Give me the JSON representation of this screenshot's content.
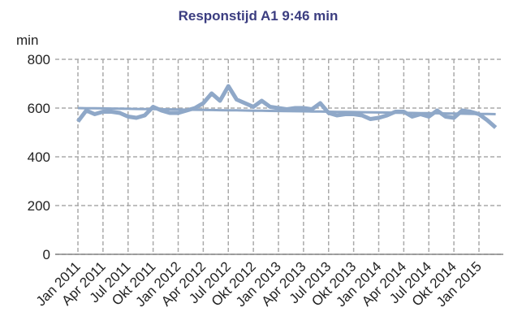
{
  "chart_data": {
    "type": "line",
    "title": "Responstijd A1 9:46 min",
    "y_label": "min",
    "categories": [
      "Jan 2011",
      null,
      null,
      "Apr 2011",
      null,
      null,
      "Jul 2011",
      null,
      null,
      "Okt 2011",
      null,
      null,
      "Jan 2012",
      null,
      null,
      "Apr 2012",
      null,
      null,
      "Jul 2012",
      null,
      null,
      "Okt 2012",
      null,
      null,
      "Jan 2013",
      null,
      null,
      "Apr 2013",
      null,
      null,
      "Jul 2013",
      null,
      null,
      "Okt 2013",
      null,
      null,
      "Jan 2014",
      null,
      null,
      "Apr 2014",
      null,
      null,
      "Jul 2014",
      null,
      null,
      "Okt 2014",
      null,
      null,
      "Jan 2015",
      null,
      null
    ],
    "series": [
      {
        "color": "#8fa8c8",
        "values": [
          545,
          590,
          575,
          585,
          585,
          580,
          565,
          560,
          570,
          605,
          590,
          580,
          580,
          590,
          600,
          620,
          660,
          630,
          690,
          635,
          620,
          605,
          630,
          605,
          600,
          595,
          600,
          600,
          595,
          620,
          580,
          570,
          575,
          575,
          570,
          555,
          560,
          570,
          585,
          585,
          565,
          575,
          565,
          590,
          565,
          560,
          590,
          585,
          575,
          550,
          520
        ]
      },
      {
        "color": "#8fa8c8",
        "values": [
          600,
          599.5,
          599,
          598.5,
          598,
          597.5,
          597,
          596.5,
          596,
          595.5,
          595,
          594.5,
          594,
          593.5,
          593,
          592.5,
          592,
          591.5,
          591,
          590.5,
          590,
          589.5,
          589,
          588.5,
          588,
          587.5,
          587,
          586.5,
          586,
          585.5,
          585,
          584.5,
          584,
          583.5,
          583,
          582.5,
          582,
          581.5,
          581,
          580.5,
          580,
          579.5,
          579,
          578.5,
          578,
          577.5,
          577,
          576.5,
          576,
          575.5,
          575
        ]
      }
    ],
    "ylim": [
      0,
      800
    ],
    "yticks": [
      0,
      200,
      400,
      600,
      800
    ],
    "grid": true
  }
}
